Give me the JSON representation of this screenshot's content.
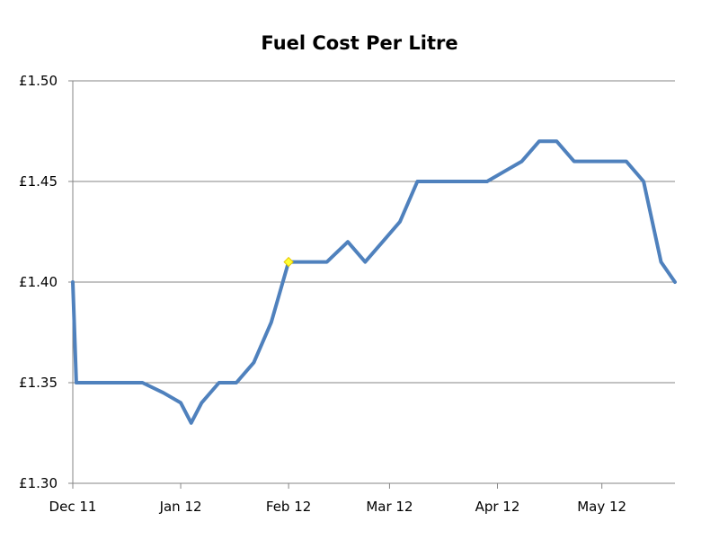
{
  "chart_data": {
    "type": "line",
    "title": "Fuel Cost Per Litre",
    "xlabel": "",
    "ylabel": "",
    "x_tick_labels": [
      "Dec 11",
      "Jan 12",
      "Feb 12",
      "Mar 12",
      "Apr 12",
      "May 12"
    ],
    "x_tick_values": [
      0,
      31,
      62,
      91,
      122,
      152
    ],
    "y_tick_labels": [
      "£1.30",
      "£1.35",
      "£1.40",
      "£1.45",
      "£1.50"
    ],
    "y_tick_values": [
      1.3,
      1.35,
      1.4,
      1.45,
      1.5
    ],
    "xlim": [
      0,
      173
    ],
    "ylim": [
      1.3,
      1.5
    ],
    "grid": true,
    "legend": "none",
    "series_color": "#4F81BD",
    "highlight_color": "#FFFF33",
    "series": [
      {
        "x": [
          0,
          1,
          4,
          8,
          12,
          16,
          20,
          26,
          31,
          34,
          37,
          42,
          47,
          52,
          57,
          62,
          67,
          73,
          79,
          84,
          89,
          94,
          99,
          104,
          109,
          114,
          119,
          124,
          129,
          134,
          139,
          144,
          149,
          154,
          159,
          164,
          169,
          173
        ],
        "y": [
          1.4,
          1.35,
          1.35,
          1.35,
          1.35,
          1.35,
          1.35,
          1.345,
          1.34,
          1.33,
          1.34,
          1.35,
          1.35,
          1.36,
          1.38,
          1.41,
          1.41,
          1.41,
          1.42,
          1.41,
          1.42,
          1.43,
          1.45,
          1.45,
          1.45,
          1.45,
          1.45,
          1.455,
          1.46,
          1.47,
          1.47,
          1.46,
          1.46,
          1.46,
          1.46,
          1.45,
          1.41,
          1.4
        ],
        "highlight_index": 15
      }
    ]
  }
}
